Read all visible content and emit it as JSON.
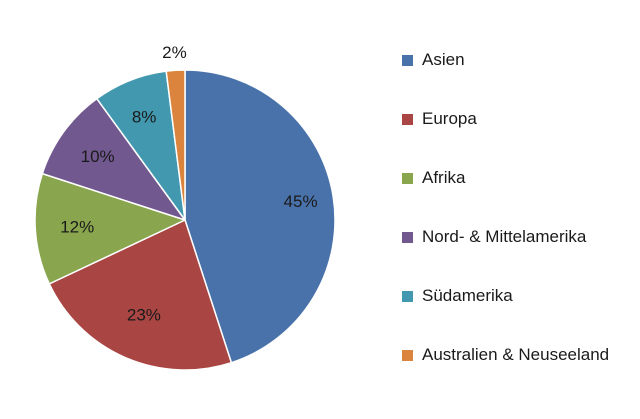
{
  "chart_data": {
    "type": "pie",
    "title": "",
    "legend_position": "right",
    "slices": [
      {
        "label": "Asien",
        "value": 45,
        "display": "45%",
        "color": "#4a72aa"
      },
      {
        "label": "Europa",
        "value": 23,
        "display": "23%",
        "color": "#a94543"
      },
      {
        "label": "Afrika",
        "value": 12,
        "display": "12%",
        "color": "#89a54e"
      },
      {
        "label": "Nord- & Mittelamerika",
        "value": 10,
        "display": "10%",
        "color": "#71588f"
      },
      {
        "label": "Südamerika",
        "value": 8,
        "display": "8%",
        "color": "#4298af"
      },
      {
        "label": "Australien & Neuseeland",
        "value": 2,
        "display": "2%",
        "color": "#db843d"
      }
    ]
  }
}
